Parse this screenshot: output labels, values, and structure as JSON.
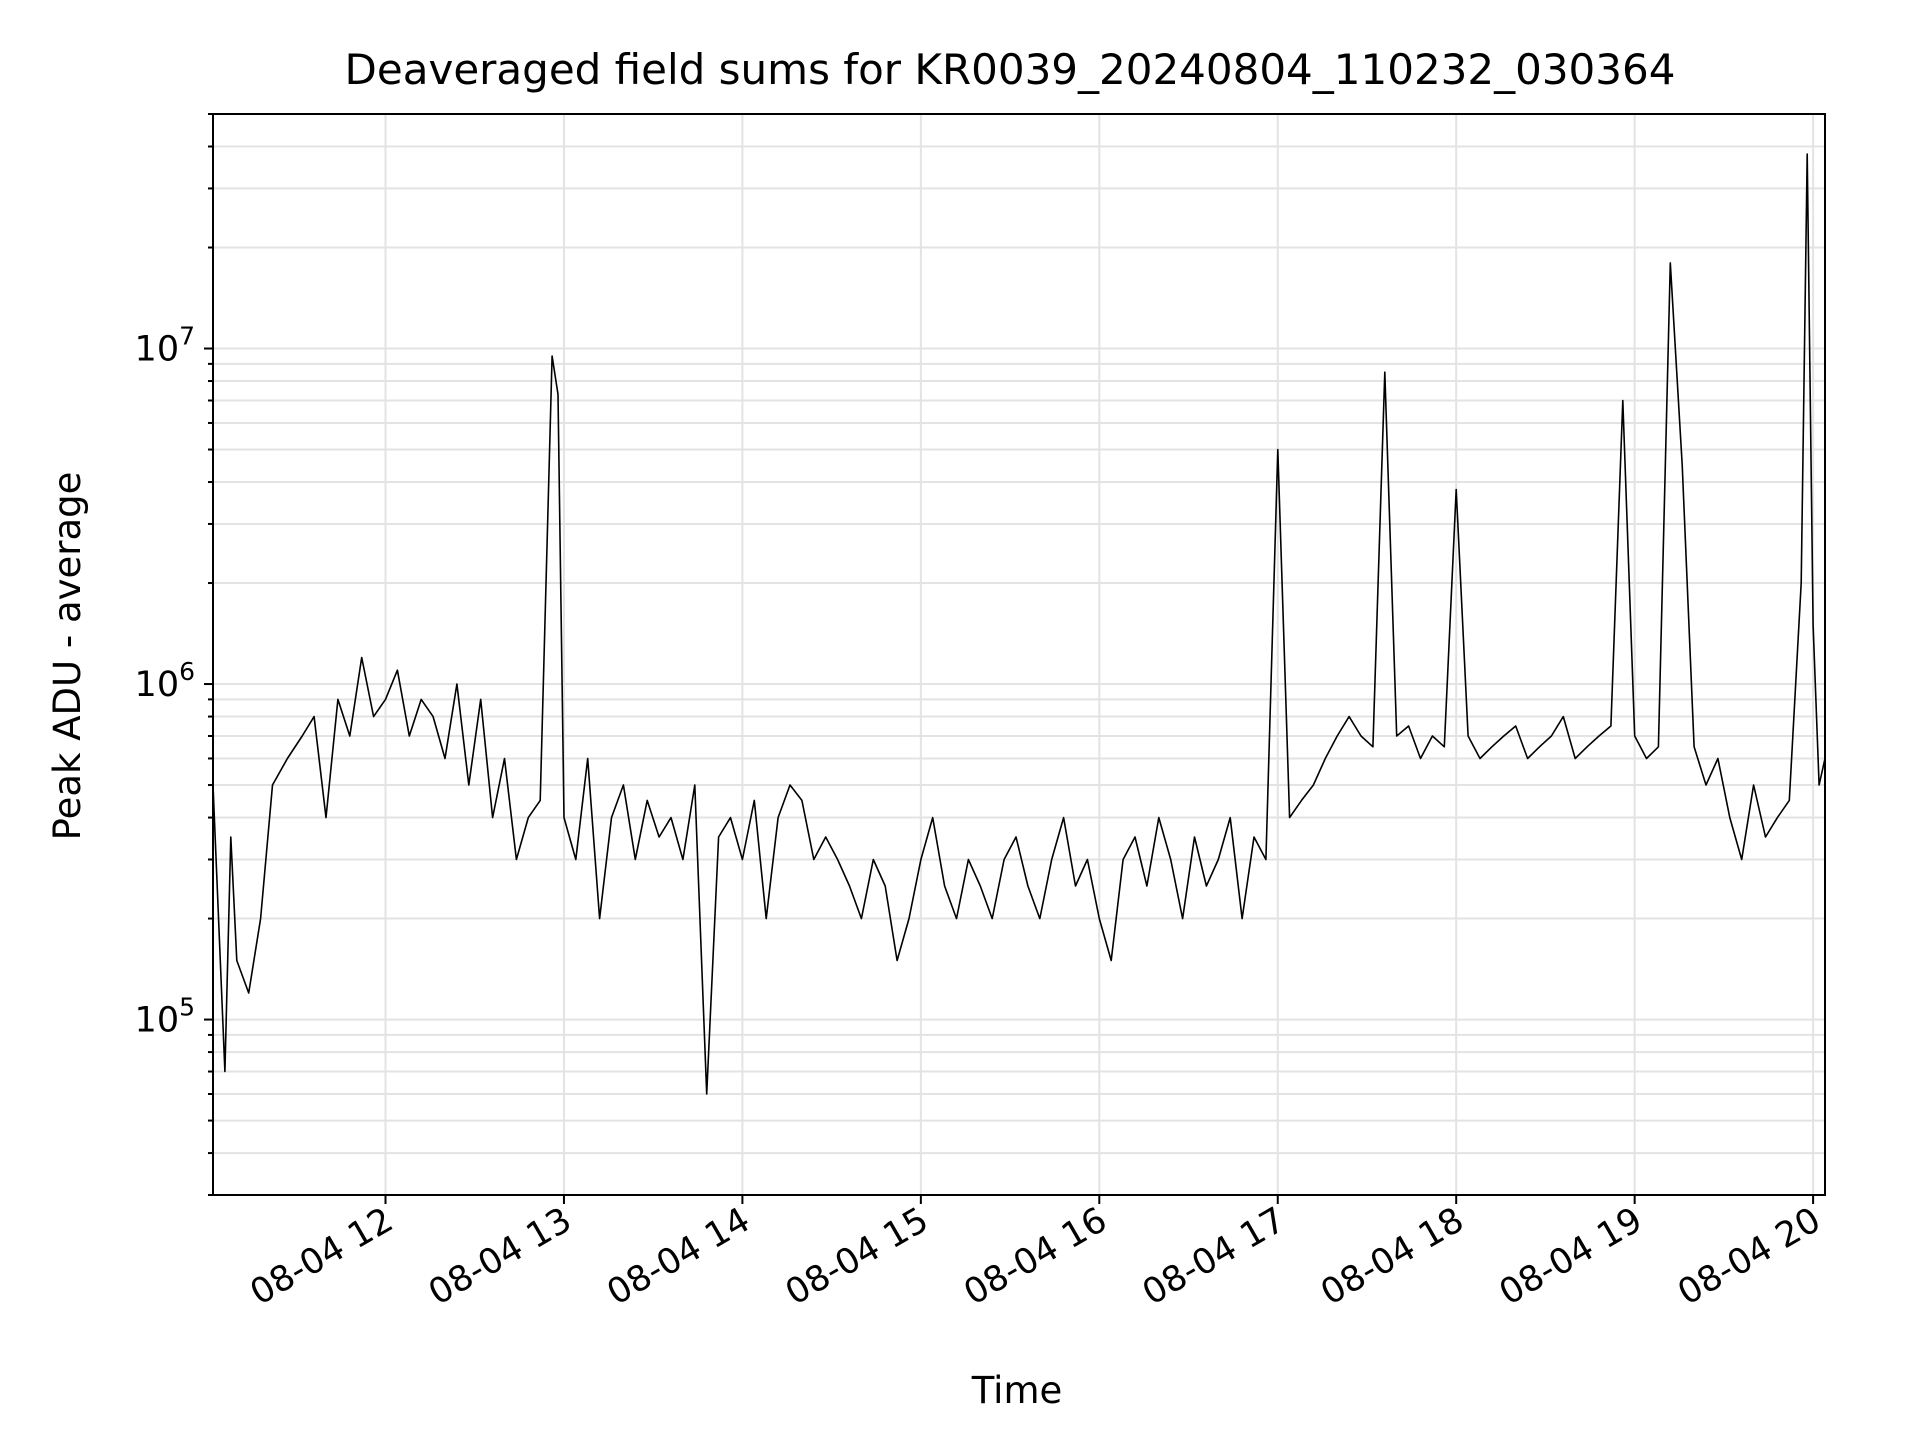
{
  "chart_data": {
    "type": "line",
    "title": "Deaveraged field sums for KR0039_20240804_110232_030364",
    "xlabel": "Time",
    "ylabel": "Peak ADU - average",
    "y_scale": "log",
    "ylim": [
      30000,
      50000000
    ],
    "xlim": [
      "2024-08-04 11:02",
      "2024-08-04 20:04"
    ],
    "grid": true,
    "legend": "none",
    "colors": {
      "line": "#000000",
      "grid": "#e3e3e3",
      "axes": "#000000"
    },
    "x_ticks": [
      {
        "value": "2024-08-04 12:00",
        "label": "08-04 12"
      },
      {
        "value": "2024-08-04 13:00",
        "label": "08-04 13"
      },
      {
        "value": "2024-08-04 14:00",
        "label": "08-04 14"
      },
      {
        "value": "2024-08-04 15:00",
        "label": "08-04 15"
      },
      {
        "value": "2024-08-04 16:00",
        "label": "08-04 16"
      },
      {
        "value": "2024-08-04 17:00",
        "label": "08-04 17"
      },
      {
        "value": "2024-08-04 18:00",
        "label": "08-04 18"
      },
      {
        "value": "2024-08-04 19:00",
        "label": "08-04 19"
      },
      {
        "value": "2024-08-04 20:00",
        "label": "08-04 20"
      }
    ],
    "y_ticks": [
      {
        "value": 100000,
        "base": "10",
        "exp": "5"
      },
      {
        "value": 1000000,
        "base": "10",
        "exp": "6"
      },
      {
        "value": 10000000,
        "base": "10",
        "exp": "7"
      }
    ],
    "series": [
      {
        "x": [
          "2024-08-04 11:02",
          "2024-08-04 11:06",
          "2024-08-04 11:08",
          "2024-08-04 11:10",
          "2024-08-04 11:14",
          "2024-08-04 11:18",
          "2024-08-04 11:22",
          "2024-08-04 11:27",
          "2024-08-04 11:32",
          "2024-08-04 11:36",
          "2024-08-04 11:40",
          "2024-08-04 11:44",
          "2024-08-04 11:48",
          "2024-08-04 11:52",
          "2024-08-04 11:56",
          "2024-08-04 12:00",
          "2024-08-04 12:04",
          "2024-08-04 12:08",
          "2024-08-04 12:12",
          "2024-08-04 12:16",
          "2024-08-04 12:20",
          "2024-08-04 12:24",
          "2024-08-04 12:28",
          "2024-08-04 12:32",
          "2024-08-04 12:36",
          "2024-08-04 12:40",
          "2024-08-04 12:44",
          "2024-08-04 12:48",
          "2024-08-04 12:52",
          "2024-08-04 12:56",
          "2024-08-04 12:58",
          "2024-08-04 13:00",
          "2024-08-04 13:04",
          "2024-08-04 13:08",
          "2024-08-04 13:12",
          "2024-08-04 13:16",
          "2024-08-04 13:20",
          "2024-08-04 13:24",
          "2024-08-04 13:28",
          "2024-08-04 13:32",
          "2024-08-04 13:36",
          "2024-08-04 13:40",
          "2024-08-04 13:44",
          "2024-08-04 13:48",
          "2024-08-04 13:52",
          "2024-08-04 13:56",
          "2024-08-04 14:00",
          "2024-08-04 14:04",
          "2024-08-04 14:08",
          "2024-08-04 14:12",
          "2024-08-04 14:16",
          "2024-08-04 14:20",
          "2024-08-04 14:24",
          "2024-08-04 14:28",
          "2024-08-04 14:32",
          "2024-08-04 14:36",
          "2024-08-04 14:40",
          "2024-08-04 14:44",
          "2024-08-04 14:48",
          "2024-08-04 14:52",
          "2024-08-04 14:56",
          "2024-08-04 15:00",
          "2024-08-04 15:04",
          "2024-08-04 15:08",
          "2024-08-04 15:12",
          "2024-08-04 15:16",
          "2024-08-04 15:20",
          "2024-08-04 15:24",
          "2024-08-04 15:28",
          "2024-08-04 15:32",
          "2024-08-04 15:36",
          "2024-08-04 15:40",
          "2024-08-04 15:44",
          "2024-08-04 15:48",
          "2024-08-04 15:52",
          "2024-08-04 15:56",
          "2024-08-04 16:00",
          "2024-08-04 16:04",
          "2024-08-04 16:08",
          "2024-08-04 16:12",
          "2024-08-04 16:16",
          "2024-08-04 16:20",
          "2024-08-04 16:24",
          "2024-08-04 16:28",
          "2024-08-04 16:32",
          "2024-08-04 16:36",
          "2024-08-04 16:40",
          "2024-08-04 16:44",
          "2024-08-04 16:48",
          "2024-08-04 16:52",
          "2024-08-04 16:56",
          "2024-08-04 17:00",
          "2024-08-04 17:04",
          "2024-08-04 17:08",
          "2024-08-04 17:12",
          "2024-08-04 17:16",
          "2024-08-04 17:20",
          "2024-08-04 17:24",
          "2024-08-04 17:28",
          "2024-08-04 17:32",
          "2024-08-04 17:36",
          "2024-08-04 17:40",
          "2024-08-04 17:44",
          "2024-08-04 17:48",
          "2024-08-04 17:52",
          "2024-08-04 17:56",
          "2024-08-04 18:00",
          "2024-08-04 18:04",
          "2024-08-04 18:08",
          "2024-08-04 18:12",
          "2024-08-04 18:16",
          "2024-08-04 18:20",
          "2024-08-04 18:24",
          "2024-08-04 18:28",
          "2024-08-04 18:32",
          "2024-08-04 18:36",
          "2024-08-04 18:40",
          "2024-08-04 18:44",
          "2024-08-04 18:48",
          "2024-08-04 18:52",
          "2024-08-04 18:56",
          "2024-08-04 19:00",
          "2024-08-04 19:04",
          "2024-08-04 19:08",
          "2024-08-04 19:12",
          "2024-08-04 19:16",
          "2024-08-04 19:20",
          "2024-08-04 19:24",
          "2024-08-04 19:28",
          "2024-08-04 19:32",
          "2024-08-04 19:36",
          "2024-08-04 19:40",
          "2024-08-04 19:44",
          "2024-08-04 19:48",
          "2024-08-04 19:52",
          "2024-08-04 19:56",
          "2024-08-04 19:58",
          "2024-08-04 20:00",
          "2024-08-04 20:02",
          "2024-08-04 20:04"
        ],
        "y": [
          500000,
          70000,
          350000,
          150000,
          120000,
          200000,
          500000,
          600000,
          700000,
          800000,
          400000,
          900000,
          700000,
          1200000,
          800000,
          900000,
          1100000,
          700000,
          900000,
          800000,
          600000,
          1000000,
          500000,
          900000,
          400000,
          600000,
          300000,
          400000,
          450000,
          9500000,
          7300000,
          400000,
          300000,
          600000,
          200000,
          400000,
          500000,
          300000,
          450000,
          350000,
          400000,
          300000,
          500000,
          60000,
          350000,
          400000,
          300000,
          450000,
          200000,
          400000,
          500000,
          450000,
          300000,
          350000,
          300000,
          250000,
          200000,
          300000,
          250000,
          150000,
          200000,
          300000,
          400000,
          250000,
          200000,
          300000,
          250000,
          200000,
          300000,
          350000,
          250000,
          200000,
          300000,
          400000,
          250000,
          300000,
          200000,
          150000,
          300000,
          350000,
          250000,
          400000,
          300000,
          200000,
          350000,
          250000,
          300000,
          400000,
          200000,
          350000,
          300000,
          5000000,
          400000,
          450000,
          500000,
          600000,
          700000,
          800000,
          700000,
          650000,
          8500000,
          700000,
          750000,
          600000,
          700000,
          650000,
          3800000,
          700000,
          600000,
          650000,
          700000,
          750000,
          600000,
          650000,
          700000,
          800000,
          600000,
          650000,
          700000,
          750000,
          7000000,
          700000,
          600000,
          650000,
          18000000,
          4500000,
          650000,
          500000,
          600000,
          400000,
          300000,
          500000,
          350000,
          400000,
          450000,
          2000000,
          38000000,
          1500000,
          500000,
          600000
        ]
      }
    ]
  }
}
